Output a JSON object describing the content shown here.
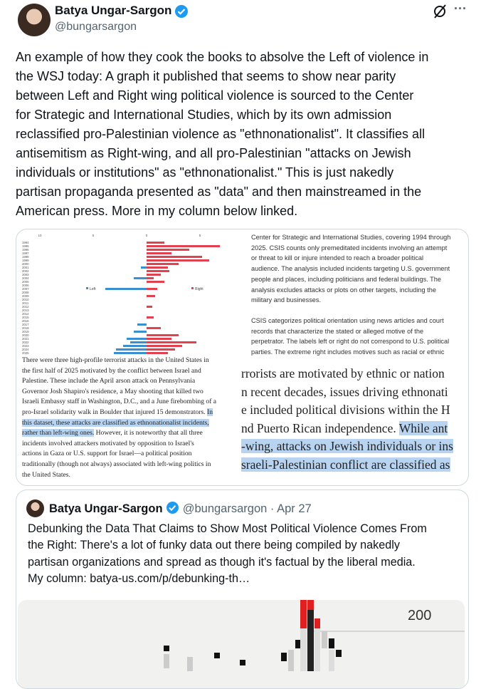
{
  "author": {
    "name": "Batya Ungar-Sargon",
    "handle": "@bungarsargon"
  },
  "tweet": {
    "lines": [
      "An example of how they cook the books to absolve the Left of violence in",
      "the WSJ today: A graph it published that seems to show near parity",
      "between Left and Right wing political violence is sourced to the Center",
      "for Strategic and International Studies, which by its own admission",
      "reclassified pro-Palestinian violence as \"ethnonationalist\". It classifies all",
      "antisemitism as Right-wing, and all pro-Palestinian \"attacks on Jewish",
      "individuals or institutions\" as \"ethnonationalist.\" This is just nakedly",
      "partisan propaganda presented as \"data\" and then mainstreamed in the",
      "American press. More in my column below linked."
    ]
  },
  "media": {
    "left": {
      "chart": {
        "axis_labels": [
          10,
          5,
          0,
          5
        ],
        "years": [
          1994,
          1995,
          1996,
          1997,
          1998,
          1999,
          2000,
          2001,
          2002,
          2003,
          2004,
          2005,
          2006,
          2007,
          2008,
          2009,
          2010,
          2011,
          2012,
          2013,
          2014,
          2015,
          2016,
          2017,
          2018,
          2019,
          2020,
          2021,
          2022,
          2023,
          2024,
          2025
        ],
        "legend": [
          "Left",
          "Right"
        ]
      },
      "caption_lines": [
        "There were three high-profile terrorist attacks in the United States in",
        "the first half of 2025 motivated by the conflict between Israel and",
        "Palestine. These include the April arson attack on Pennsylvania",
        "Governor Josh Shapiro's residence, a May shooting that killed two",
        "Israeli Embassy staff in Washington, D.C., and a June firebombing of a",
        [
          {
            "text": "pro-Israel solidarity walk in Boulder that injured 15 demonstrators. "
          },
          {
            "text": "In",
            "highlight": true
          }
        ],
        [
          {
            "text": "this dataset, these attacks are classified as ethnonationalist incidents,",
            "highlight": true
          }
        ],
        [
          {
            "text": "rather than left-wing ones.",
            "highlight": true
          },
          {
            "text": " However, it is noteworthy that all three"
          }
        ],
        "incidents involved attackers motivated by opposition to Israel's",
        "actions in Gaza or U.S. support for Israel—a political position",
        "traditionally (though not always) associated with left-wing politics in",
        "the United States."
      ]
    },
    "right": {
      "note_paragraphs": [
        [
          "Center for Strategic and International Studies, covering 1994 through",
          "2025. CSIS counts only premeditated incidents involving an attempt",
          "or threat to kill or injure intended to reach a broader political",
          "audience. The analysis included incidents targeting U.S. government",
          "people and places, including politicians and federal buildings. The",
          "analysis excludes attacks or plots on other targets, including the",
          "military and businesses."
        ],
        [
          "CSIS categorizes political orientation using news articles and court",
          "records that characterize the stated or alleged motive of the",
          "perpetrator. The labels left or right do not correspond to U.S. political",
          "parties. The extreme right includes motives such as racial or ethnic"
        ]
      ],
      "zoom_lines": [
        "rrorists are motivated by ethnic or nation",
        "n recent decades, issues driving ethnonati",
        "e included political divisions within the H",
        [
          {
            "text": "nd Puerto Rican independence. "
          },
          {
            "text": "While ant",
            "highlight": true
          }
        ],
        [
          {
            "text": "-wing, attacks on Jewish individuals or ins",
            "highlight": true
          }
        ],
        [
          {
            "text": "sraeli-Palestinian conflict are classified as",
            "highlight": true
          }
        ]
      ]
    }
  },
  "quote": {
    "author": {
      "name": "Batya Ungar-Sargon",
      "handle": "@bungarsargon"
    },
    "separator": "·",
    "date": "Apr 27",
    "lines": [
      "Debunking the Data That Claims to Show Most Political Violence Comes From",
      "the Right: There's a lot of funky data out there being compiled by nakedly",
      "partisan organizations and spread as though it's factual by the liberal media.",
      "My column: batya-us.com/p/debunking-th…"
    ],
    "chart_label": 200
  }
}
